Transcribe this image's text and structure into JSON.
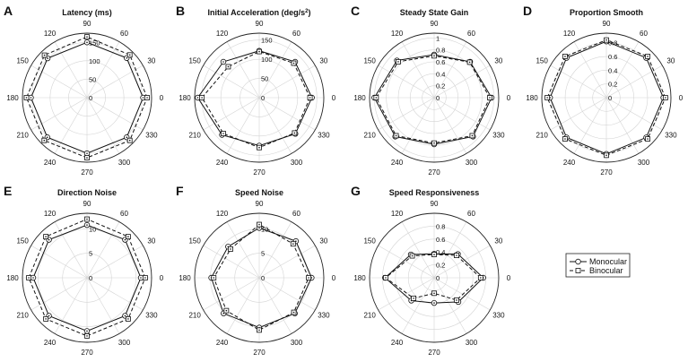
{
  "figure": {
    "legend": [
      {
        "name": "Monocular",
        "marker": "circle",
        "line": "solid"
      },
      {
        "name": "Binocular",
        "marker": "square",
        "line": "dashed"
      }
    ]
  },
  "chart_data": [
    {
      "type": "polar",
      "letter": "A",
      "title": "Latency (ms)",
      "rmax": 175,
      "rticks": [
        0,
        50,
        100,
        150
      ],
      "angles": [
        0,
        30,
        60,
        90,
        120,
        150,
        180,
        210,
        240,
        270,
        300,
        330
      ],
      "directions": [
        0,
        45,
        90,
        135,
        180,
        225,
        270,
        315
      ],
      "series": [
        {
          "name": "Monocular",
          "values": [
            152,
            152,
            150,
            151,
            152,
            152,
            151,
            152
          ]
        },
        {
          "name": "Binocular",
          "values": [
            163,
            164,
            165,
            163,
            164,
            164,
            163,
            164
          ]
        }
      ]
    },
    {
      "type": "polar",
      "letter": "B",
      "title": "Initial Acceleration (deg/s²)",
      "rmax": 168,
      "rticks": [
        0,
        50,
        100,
        150
      ],
      "angles": [
        0,
        30,
        60,
        90,
        120,
        150,
        180,
        210,
        240,
        270,
        300,
        330
      ],
      "directions": [
        0,
        45,
        90,
        135,
        180,
        225,
        270,
        315
      ],
      "series": [
        {
          "name": "Monocular",
          "values": [
            137,
            132,
            122,
            132,
            160,
            137,
            125,
            133
          ]
        },
        {
          "name": "Binocular",
          "values": [
            132,
            127,
            120,
            114,
            149,
            132,
            130,
            130
          ]
        }
      ]
    },
    {
      "type": "polar",
      "letter": "C",
      "title": "Steady State Gain",
      "rmax": 1.08,
      "rticks": [
        0,
        0.2,
        0.4,
        0.6,
        0.8,
        1
      ],
      "angles": [
        0,
        30,
        60,
        90,
        120,
        150,
        180,
        210,
        240,
        270,
        300,
        330
      ],
      "directions": [
        0,
        45,
        90,
        135,
        180,
        225,
        270,
        315
      ],
      "series": [
        {
          "name": "Monocular",
          "values": [
            0.96,
            0.85,
            0.72,
            0.88,
            1.0,
            0.92,
            0.78,
            0.92
          ]
        },
        {
          "name": "Binocular",
          "values": [
            0.93,
            0.84,
            0.7,
            0.85,
            0.97,
            0.9,
            0.76,
            0.9
          ]
        }
      ]
    },
    {
      "type": "polar",
      "letter": "D",
      "title": "Proportion Smooth",
      "rmax": 0.94,
      "rticks": [
        0,
        0.2,
        0.4,
        0.6,
        0.8
      ],
      "angles": [
        0,
        30,
        60,
        90,
        120,
        150,
        180,
        210,
        240,
        270,
        300,
        330
      ],
      "directions": [
        0,
        45,
        90,
        135,
        180,
        225,
        270,
        315
      ],
      "series": [
        {
          "name": "Monocular",
          "values": [
            0.83,
            0.82,
            0.82,
            0.82,
            0.82,
            0.82,
            0.82,
            0.82
          ]
        },
        {
          "name": "Binocular",
          "values": [
            0.86,
            0.85,
            0.84,
            0.85,
            0.86,
            0.85,
            0.84,
            0.85
          ]
        }
      ]
    },
    {
      "type": "polar",
      "letter": "E",
      "title": "Direction Noise",
      "rmax": 13.2,
      "rticks": [
        0,
        5,
        10
      ],
      "angles": [
        0,
        30,
        60,
        90,
        120,
        150,
        180,
        210,
        240,
        270,
        300,
        330
      ],
      "directions": [
        0,
        45,
        90,
        135,
        180,
        225,
        270,
        315
      ],
      "series": [
        {
          "name": "Monocular",
          "values": [
            11.0,
            11.0,
            10.8,
            11.0,
            11.0,
            11.0,
            10.9,
            11.0
          ]
        },
        {
          "name": "Binocular",
          "values": [
            11.9,
            11.9,
            12.0,
            11.9,
            11.9,
            11.9,
            11.9,
            11.9
          ]
        }
      ]
    },
    {
      "type": "polar",
      "letter": "F",
      "title": "Speed Noise",
      "rmax": 13.2,
      "rticks": [
        0,
        5,
        10
      ],
      "angles": [
        0,
        30,
        60,
        90,
        120,
        150,
        180,
        210,
        240,
        270,
        300,
        330
      ],
      "directions": [
        0,
        45,
        90,
        135,
        180,
        225,
        270,
        315
      ],
      "series": [
        {
          "name": "Monocular",
          "values": [
            10.7,
            10.6,
            10.2,
            9.0,
            9.8,
            10.3,
            10.2,
            10.3
          ]
        },
        {
          "name": "Binocular",
          "values": [
            10.1,
            9.8,
            10.9,
            8.3,
            9.3,
            9.5,
            10.7,
            10.0
          ]
        }
      ]
    },
    {
      "type": "polar",
      "letter": "G",
      "title": "Speed Responsiveness",
      "rmax": 1.0,
      "rticks": [
        0,
        0.2,
        0.4,
        0.6,
        0.8
      ],
      "angles": [
        0,
        30,
        60,
        90,
        120,
        150,
        180,
        210,
        240,
        270,
        300,
        330
      ],
      "directions": [
        0,
        45,
        90,
        135,
        180,
        225,
        270,
        315
      ],
      "series": [
        {
          "name": "Monocular",
          "values": [
            0.76,
            0.52,
            0.37,
            0.51,
            0.76,
            0.5,
            0.39,
            0.53
          ]
        },
        {
          "name": "Binocular",
          "values": [
            0.72,
            0.49,
            0.36,
            0.48,
            0.75,
            0.45,
            0.24,
            0.49
          ]
        }
      ]
    }
  ]
}
